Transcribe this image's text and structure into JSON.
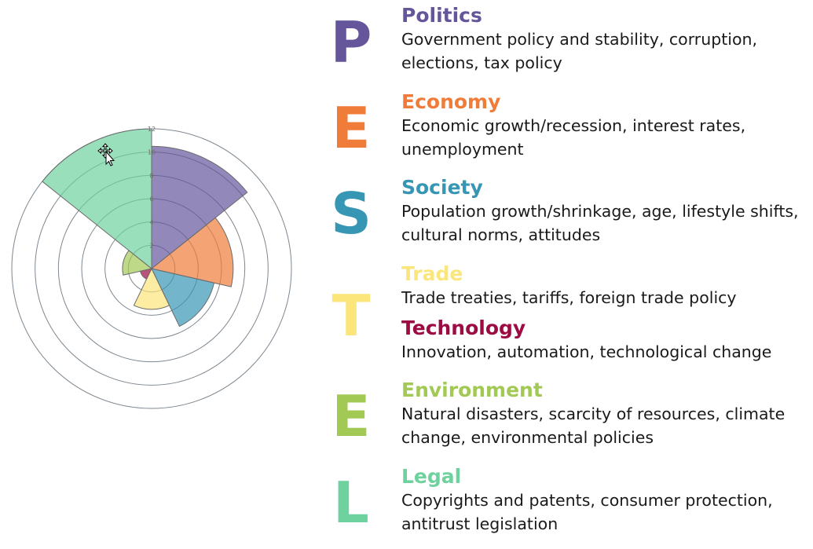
{
  "chart_data": {
    "type": "polar-area",
    "title": "",
    "r_ticks": [
      "2",
      "4",
      "6",
      "8",
      "10",
      "12"
    ],
    "r_max": 12,
    "categories": [
      "Politics",
      "Economy",
      "Society",
      "Trade",
      "Technology",
      "Environment",
      "Legal"
    ],
    "values": [
      10.5,
      7,
      5.5,
      3.5,
      1,
      2.5,
      12
    ]
  },
  "letters": [
    "P",
    "E",
    "S",
    "T",
    "E",
    "L"
  ],
  "factors": [
    {
      "title": "Politics",
      "desc": [
        "Government policy and stability, corruption,",
        "elections, tax policy"
      ],
      "color": "#65569c"
    },
    {
      "title": "Economy",
      "desc": [
        "Economic growth/recession, interest rates,",
        "unemployment"
      ],
      "color": "#f07c3a"
    },
    {
      "title": "Society",
      "desc": [
        "Population growth/shrinkage, age, lifestyle shifts,",
        "cultural norms, attitudes"
      ],
      "color": "#3796b3"
    },
    {
      "title": "Trade",
      "desc": [
        "Trade treaties, tariffs, foreign trade policy"
      ],
      "color": "#fbe67c"
    },
    {
      "title": "Technology",
      "desc": [
        "Innovation, automation, technological change"
      ],
      "color": "#9c0c43"
    },
    {
      "title": "Environment",
      "desc": [
        "Natural disasters, scarcity of resources, climate",
        "change, environmental policies"
      ],
      "color": "#a3c955"
    },
    {
      "title": "Legal",
      "desc": [
        "Copyrights and patents, consumer protection,",
        "antitrust legislation"
      ],
      "color": "#6ed29e"
    }
  ],
  "letter_colors": [
    "#65569c",
    "#f07c3a",
    "#3796b3",
    "#fbe67c",
    "#a3c955",
    "#6ed29e"
  ],
  "cursor_icon": "move-cursor-icon"
}
